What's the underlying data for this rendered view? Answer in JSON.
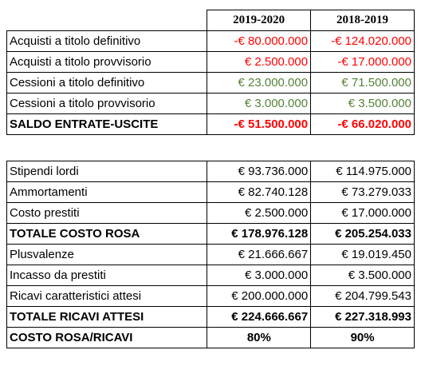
{
  "table1": {
    "columns": [
      "2019-2020",
      "2018-2019"
    ],
    "rows": [
      {
        "label": "Acquisti a titolo definitivo",
        "values": [
          "-€ 80.000.000",
          "-€ 124.020.000"
        ],
        "color": "#ff0000",
        "bold": false
      },
      {
        "label": "Acquisti a titolo provvisorio",
        "values": [
          "€ 2.500.000",
          "-€ 17.000.000"
        ],
        "color": "#ff0000",
        "bold": false
      },
      {
        "label": "Cessioni a titolo definitivo",
        "values": [
          "€ 23.000.000",
          "€ 71.500.000"
        ],
        "color": "#548235",
        "bold": false
      },
      {
        "label": "Cessioni a titolo provvisorio",
        "values": [
          "€ 3.000.000",
          "€ 3.500.000"
        ],
        "color": "#548235",
        "bold": false
      },
      {
        "label": "SALDO ENTRATE-USCITE",
        "values": [
          "-€ 51.500.000",
          "-€ 66.020.000"
        ],
        "color": "#ff0000",
        "bold": true
      }
    ]
  },
  "table2": {
    "rows": [
      {
        "label": "Stipendi lordi",
        "values": [
          "€ 93.736.000",
          "€ 114.975.000"
        ],
        "bold": false
      },
      {
        "label": "Ammortamenti",
        "values": [
          "€ 82.740.128",
          "€ 73.279.033"
        ],
        "bold": false
      },
      {
        "label": "Costo prestiti",
        "values": [
          "€ 2.500.000",
          "€ 17.000.000"
        ],
        "bold": false
      },
      {
        "label": "TOTALE COSTO ROSA",
        "values": [
          "€ 178.976.128",
          "€ 205.254.033"
        ],
        "bold": true
      },
      {
        "label": "Plusvalenze",
        "values": [
          "€ 21.666.667",
          "€ 19.019.450"
        ],
        "bold": false
      },
      {
        "label": "Incasso da prestiti",
        "values": [
          "€ 3.000.000",
          "€ 3.500.000"
        ],
        "bold": false
      },
      {
        "label": "Ricavi caratteristici attesi",
        "values": [
          "€ 200.000.000",
          "€ 204.799.543"
        ],
        "bold": false
      },
      {
        "label": "TOTALE RICAVI ATTESI",
        "values": [
          "€ 224.666.667",
          "€ 227.318.993"
        ],
        "bold": true
      },
      {
        "label": "COSTO ROSA/RICAVI",
        "values": [
          "80%",
          "90%"
        ],
        "bold": true
      }
    ]
  }
}
